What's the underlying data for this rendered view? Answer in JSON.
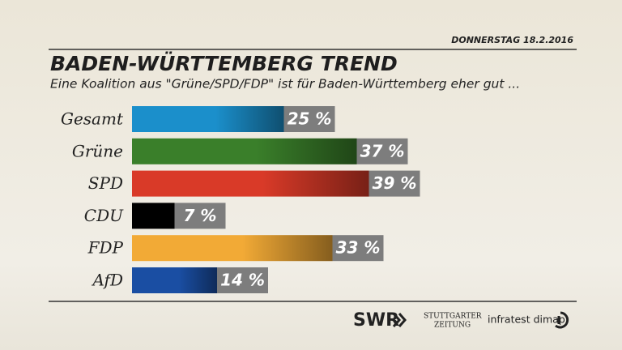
{
  "chart_data": {
    "type": "bar",
    "orientation": "horizontal",
    "date": "DONNERSTAG 18.2.2016",
    "title": "BADEN-WÜRTTEMBERG TREND",
    "subtitle": "Eine Koalition aus \"Grüne/SPD/FDP\" ist für Baden-Württemberg eher gut ...",
    "categories": [
      "Gesamt",
      "Grüne",
      "SPD",
      "CDU",
      "FDP",
      "AfD"
    ],
    "values": [
      25,
      37,
      39,
      7,
      33,
      14
    ],
    "value_labels": [
      "25 %",
      "37 %",
      "39 %",
      "7 %",
      "33 %",
      "14 %"
    ],
    "colors": [
      "#1b8fcb",
      "#3a7f2a",
      "#d93a28",
      "#000000",
      "#f2aa36",
      "#1a4ea3"
    ],
    "logos": [
      "SWR",
      "STUTTGARTER",
      "ZEITUNG",
      "infratest dimap"
    ]
  }
}
